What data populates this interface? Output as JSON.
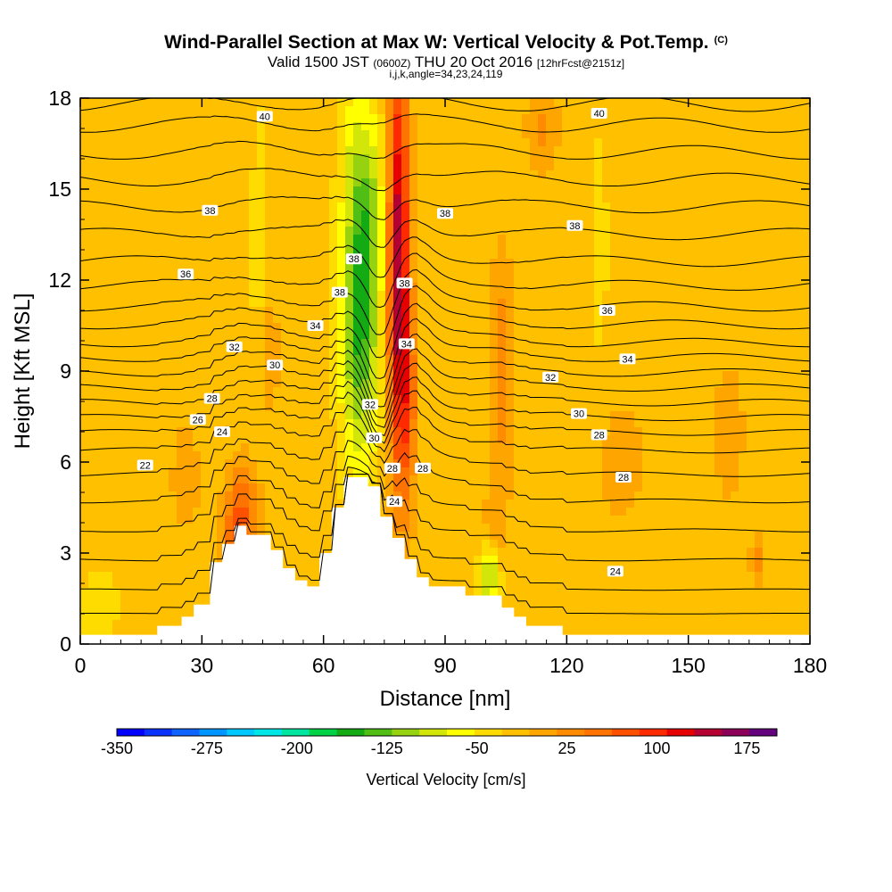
{
  "chart_data": {
    "type": "heatmap",
    "title": "Wind-Parallel Section at Max W: Vertical Velocity & Pot.Temp.",
    "title_mark": "(C)",
    "subtitle": {
      "valid_label": "Valid 1500 JST",
      "utc_time": "(0600Z)",
      "date": "THU 20 Oct 2016",
      "forecast": "[12hrFcst@2151z]"
    },
    "section_info": "i,j,k,angle=34,23,24,119",
    "xlabel": "Distance [nm]",
    "ylabel": "Height [Kft MSL]",
    "xlim": [
      0,
      180
    ],
    "ylim": [
      0,
      18
    ],
    "x_ticks": [
      "0",
      "30",
      "60",
      "90",
      "120",
      "150",
      "180"
    ],
    "y_ticks": [
      "0",
      "3",
      "6",
      "9",
      "12",
      "15",
      "18"
    ],
    "background_value": 10,
    "velocity_features": [
      {
        "x": 78.5,
        "y": 12.5,
        "sx": 2.6,
        "sy": 7.0,
        "value": 190
      },
      {
        "x": 81.0,
        "y": 8.0,
        "sx": 2.2,
        "sy": 3.5,
        "value": 70
      },
      {
        "x": 69.0,
        "y": 10.5,
        "sx": 4.5,
        "sy": 4.5,
        "value": -140
      },
      {
        "x": 71.0,
        "y": 14.5,
        "sx": 4.0,
        "sy": 3.0,
        "value": -70
      },
      {
        "x": 67.0,
        "y": 16.5,
        "sx": 3.5,
        "sy": 2.5,
        "value": -30
      },
      {
        "x": 40.0,
        "y": 4.4,
        "sx": 4.0,
        "sy": 1.6,
        "value": 90
      },
      {
        "x": 37.0,
        "y": 3.2,
        "sx": 3.0,
        "sy": 1.2,
        "value": 45
      },
      {
        "x": 47.0,
        "y": 9.5,
        "sx": 2.5,
        "sy": 3.0,
        "value": 25
      },
      {
        "x": 101.0,
        "y": 2.3,
        "sx": 2.5,
        "sy": 1.0,
        "value": -110
      },
      {
        "x": 104.0,
        "y": 9.0,
        "sx": 3.0,
        "sy": 4.0,
        "value": 55
      },
      {
        "x": 102.0,
        "y": 3.5,
        "sx": 3.0,
        "sy": 1.5,
        "value": 35
      },
      {
        "x": 114.0,
        "y": 17.0,
        "sx": 4.0,
        "sy": 1.5,
        "value": 45
      },
      {
        "x": 167.0,
        "y": 2.8,
        "sx": 1.5,
        "sy": 0.8,
        "value": 60
      },
      {
        "x": 133.0,
        "y": 6.0,
        "sx": 8.0,
        "sy": 2.5,
        "value": 25
      },
      {
        "x": 160.0,
        "y": 7.0,
        "sx": 5.0,
        "sy": 3.0,
        "value": 25
      },
      {
        "x": 26.0,
        "y": 5.5,
        "sx": 4.0,
        "sy": 2.0,
        "value": 30
      },
      {
        "x": 44.0,
        "y": 13.0,
        "sx": 2.0,
        "sy": 6.0,
        "value": -20
      },
      {
        "x": 128.0,
        "y": 13.0,
        "sx": 3.0,
        "sy": 6.0,
        "value": -15
      },
      {
        "x": 3.0,
        "y": 1.0,
        "sx": 4.0,
        "sy": 1.5,
        "value": -15
      },
      {
        "x": 8.0,
        "y": 1.5,
        "sx": 5.0,
        "sy": 1.5,
        "value": -10
      }
    ],
    "terrain_profile": {
      "x": [
        0,
        19,
        19,
        25,
        25,
        28,
        28,
        32,
        32,
        35,
        35,
        38,
        38,
        41,
        41,
        47,
        47,
        50,
        50,
        53,
        53,
        56,
        56,
        59,
        59,
        62,
        62,
        65,
        65,
        71,
        71,
        74,
        74,
        77,
        77,
        80,
        80,
        83,
        83,
        86,
        86,
        95,
        95,
        104,
        104,
        107,
        107,
        110,
        110,
        119,
        119,
        180
      ],
      "y": [
        0.3,
        0.3,
        0.6,
        0.6,
        0.9,
        0.9,
        1.3,
        1.3,
        2.7,
        2.7,
        3.3,
        3.3,
        3.9,
        3.9,
        3.6,
        3.6,
        3.1,
        3.1,
        2.5,
        2.5,
        2.1,
        2.1,
        1.9,
        1.9,
        3.0,
        3.0,
        4.5,
        4.5,
        5.5,
        5.5,
        5.2,
        5.2,
        4.2,
        4.2,
        3.5,
        3.5,
        2.8,
        2.8,
        2.2,
        2.2,
        1.9,
        1.9,
        1.6,
        1.6,
        1.2,
        1.2,
        0.9,
        0.9,
        0.6,
        0.6,
        0.3,
        0.3
      ]
    },
    "isentropes": [
      {
        "base": 0.8,
        "spread": 0.8
      },
      {
        "base": 1.6,
        "spread": 0.9
      },
      {
        "base": 2.6,
        "spread": 1.0
      },
      {
        "base": 3.6,
        "spread": 1.0
      },
      {
        "base": 4.6,
        "spread": 1.0
      },
      {
        "base": 5.5,
        "spread": 1.0
      },
      {
        "base": 6.3,
        "spread": 1.0
      },
      {
        "base": 6.9,
        "spread": 1.0
      },
      {
        "base": 7.4,
        "spread": 1.0
      },
      {
        "base": 7.9,
        "spread": 1.0
      },
      {
        "base": 8.4,
        "spread": 1.0
      },
      {
        "base": 8.9,
        "spread": 1.0
      },
      {
        "base": 9.4,
        "spread": 1.0
      },
      {
        "base": 9.9,
        "spread": 1.0
      },
      {
        "base": 10.5,
        "spread": 1.0
      },
      {
        "base": 11.1,
        "spread": 1.0
      },
      {
        "base": 11.8,
        "spread": 1.0
      },
      {
        "base": 12.6,
        "spread": 1.0
      },
      {
        "base": 13.5,
        "spread": 1.0
      },
      {
        "base": 14.4,
        "spread": 1.0
      },
      {
        "base": 15.3,
        "spread": 1.0
      },
      {
        "base": 16.2,
        "spread": 1.0
      },
      {
        "base": 17.1,
        "spread": 1.0
      },
      {
        "base": 17.8,
        "spread": 1.0
      }
    ],
    "contour_labels": [
      {
        "text": "40",
        "x": 45.5,
        "y": 17.4
      },
      {
        "text": "40",
        "x": 128,
        "y": 17.5
      },
      {
        "text": "38",
        "x": 32,
        "y": 14.3
      },
      {
        "text": "38",
        "x": 90,
        "y": 14.2
      },
      {
        "text": "38",
        "x": 122,
        "y": 13.8
      },
      {
        "text": "38",
        "x": 67.5,
        "y": 12.7
      },
      {
        "text": "38",
        "x": 80,
        "y": 11.9
      },
      {
        "text": "38",
        "x": 64,
        "y": 11.6
      },
      {
        "text": "36",
        "x": 130,
        "y": 11.0
      },
      {
        "text": "36",
        "x": 26,
        "y": 12.2
      },
      {
        "text": "34",
        "x": 58,
        "y": 10.5
      },
      {
        "text": "34",
        "x": 80.5,
        "y": 9.9
      },
      {
        "text": "34",
        "x": 135,
        "y": 9.4
      },
      {
        "text": "32",
        "x": 38,
        "y": 9.8
      },
      {
        "text": "32",
        "x": 116,
        "y": 8.8
      },
      {
        "text": "32",
        "x": 71.5,
        "y": 7.9
      },
      {
        "text": "30",
        "x": 48,
        "y": 9.2
      },
      {
        "text": "30",
        "x": 123,
        "y": 7.6
      },
      {
        "text": "30",
        "x": 72.5,
        "y": 6.8
      },
      {
        "text": "28",
        "x": 32.5,
        "y": 8.1
      },
      {
        "text": "28",
        "x": 77,
        "y": 5.8
      },
      {
        "text": "28",
        "x": 84.5,
        "y": 5.8
      },
      {
        "text": "28",
        "x": 128,
        "y": 6.9
      },
      {
        "text": "28",
        "x": 134,
        "y": 5.5
      },
      {
        "text": "26",
        "x": 29,
        "y": 7.4
      },
      {
        "text": "24",
        "x": 35,
        "y": 7.0
      },
      {
        "text": "24",
        "x": 77.5,
        "y": 4.7
      },
      {
        "text": "24",
        "x": 132,
        "y": 2.4
      },
      {
        "text": "22",
        "x": 16,
        "y": 5.9
      }
    ],
    "colorbar": {
      "label": "Vertical Velocity [cm/s]",
      "min": -350,
      "max": 200,
      "step": 25,
      "tick_labels": [
        "-350",
        "-275",
        "-200",
        "-125",
        "-50",
        "25",
        "100",
        "175"
      ],
      "colors": [
        "#0000ff",
        "#0a32ff",
        "#0f64ff",
        "#0096ff",
        "#00c8ff",
        "#00e6e6",
        "#00e6a0",
        "#00d246",
        "#14aa14",
        "#50be14",
        "#96d20f",
        "#d2e60a",
        "#ffff00",
        "#ffdc00",
        "#ffc000",
        "#ffa500",
        "#ff8c00",
        "#ff7300",
        "#ff5000",
        "#ff2a00",
        "#e60000",
        "#b40032",
        "#8c005a",
        "#64007d"
      ]
    }
  }
}
